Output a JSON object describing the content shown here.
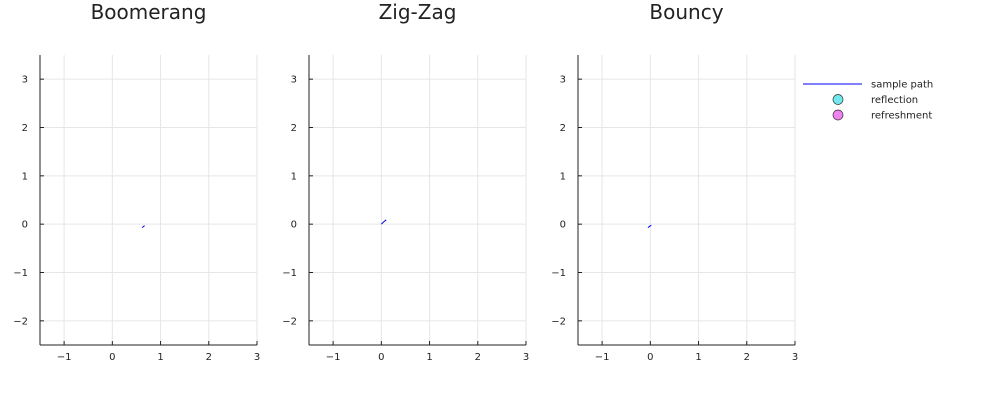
{
  "chart_data": [
    {
      "type": "line",
      "title": "Boomerang",
      "xlim": [
        -1.5,
        3.0
      ],
      "ylim": [
        -2.5,
        3.5
      ],
      "xticks": [
        -1,
        0,
        1,
        2,
        3
      ],
      "yticks": [
        -2,
        -1,
        0,
        1,
        2,
        3
      ],
      "grid": true,
      "series": [
        {
          "name": "sample path",
          "x": [
            0.62,
            0.67
          ],
          "y": [
            -0.07,
            -0.03
          ]
        }
      ]
    },
    {
      "type": "line",
      "title": "Zig-Zag",
      "xlim": [
        -1.5,
        3.0
      ],
      "ylim": [
        -2.5,
        3.5
      ],
      "xticks": [
        -1,
        0,
        1,
        2,
        3
      ],
      "yticks": [
        -2,
        -1,
        0,
        1,
        2,
        3
      ],
      "grid": true,
      "series": [
        {
          "name": "sample path",
          "x": [
            0.0,
            0.04,
            0.1
          ],
          "y": [
            0.0,
            0.04,
            0.09
          ]
        }
      ]
    },
    {
      "type": "line",
      "title": "Bouncy",
      "xlim": [
        -1.5,
        3.0
      ],
      "ylim": [
        -2.5,
        3.5
      ],
      "xticks": [
        -1,
        0,
        1,
        2,
        3
      ],
      "yticks": [
        -2,
        -1,
        0,
        1,
        2,
        3
      ],
      "grid": true,
      "series": [
        {
          "name": "sample path",
          "x": [
            -0.05,
            0.02
          ],
          "y": [
            -0.07,
            -0.02
          ]
        }
      ]
    }
  ],
  "legend": {
    "placement": "right",
    "entries": [
      {
        "label": "sample path",
        "kind": "line",
        "color": "#0000ff"
      },
      {
        "label": "reflection",
        "kind": "marker",
        "color": "#70e8ee"
      },
      {
        "label": "refreshment",
        "kind": "marker",
        "color": "#ee82ee"
      }
    ]
  },
  "colors": {
    "path": "#0000ff",
    "grid": "#e6e6e6",
    "axis": "#222222"
  }
}
